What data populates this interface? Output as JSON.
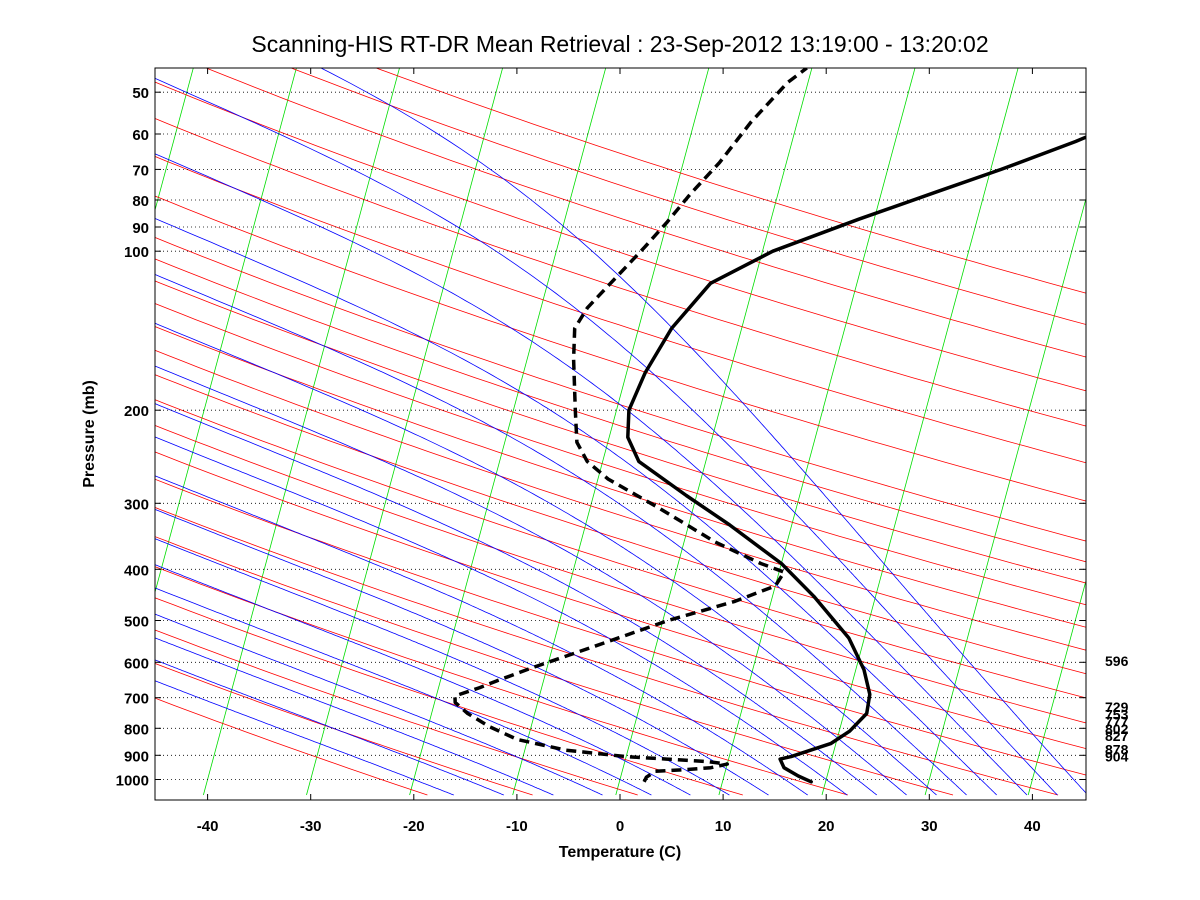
{
  "chart_data": {
    "type": "line",
    "title": "Scanning-HIS RT-DR Mean Retrieval : 23-Sep-2012 13:19:00 - 13:20:02",
    "xlabel": "Temperature (C)",
    "ylabel": "Pressure (mb)",
    "xlim": [
      -45,
      45
    ],
    "ylim": [
      1070,
      44
    ],
    "y_scale": "log",
    "x_ticks": [
      -40,
      -30,
      -20,
      -10,
      0,
      10,
      20,
      30,
      40
    ],
    "x_tick_labels": [
      "-40",
      "-30",
      "-20",
      "-10",
      "0",
      "10",
      "20",
      "30",
      "40"
    ],
    "y_ticks": [
      50,
      60,
      70,
      80,
      90,
      100,
      200,
      300,
      400,
      500,
      600,
      700,
      800,
      900,
      1000
    ],
    "y_tick_labels": [
      "50",
      "60",
      "70",
      "80",
      "90",
      "100",
      "200",
      "300",
      "400",
      "500",
      "600",
      "700",
      "800",
      "900",
      "1000"
    ],
    "grid": "horizontal-dotted",
    "skew": "skew-T log-P",
    "background_lines": {
      "dry_adiabats_theta_K": [
        250,
        260,
        270,
        280,
        290,
        300,
        310,
        320,
        330,
        340,
        350,
        360,
        370,
        380,
        390,
        400,
        410,
        420,
        440,
        460,
        480,
        500,
        520,
        540,
        560
      ],
      "moist_adiabats_thetaw_C": [
        -20,
        -15,
        -10,
        -5,
        0,
        4,
        8,
        12,
        16,
        20,
        23,
        26,
        29,
        32,
        35,
        38,
        41,
        44
      ],
      "isotherms_C": [
        -140,
        -130,
        -120,
        -110,
        -100,
        -90,
        -80,
        -70,
        -60,
        -50,
        -40,
        -30,
        -20,
        -10,
        0,
        10,
        20,
        30,
        40
      ]
    },
    "series": [
      {
        "name": "Temperature",
        "style": "solid",
        "color": "#000000",
        "points": [
          {
            "t": 18.6,
            "p": 1010
          },
          {
            "t": 17.2,
            "p": 985
          },
          {
            "t": 15.6,
            "p": 950
          },
          {
            "t": 15.0,
            "p": 915
          },
          {
            "t": 16.0,
            "p": 905
          },
          {
            "t": 19.5,
            "p": 855
          },
          {
            "t": 21.0,
            "p": 810
          },
          {
            "t": 22.2,
            "p": 750
          },
          {
            "t": 22.0,
            "p": 690
          },
          {
            "t": 20.8,
            "p": 620
          },
          {
            "t": 18.5,
            "p": 540
          },
          {
            "t": 14.0,
            "p": 450
          },
          {
            "t": 10.0,
            "p": 390
          },
          {
            "t": 4.0,
            "p": 330
          },
          {
            "t": -1.0,
            "p": 290
          },
          {
            "t": -6.5,
            "p": 250
          },
          {
            "t": -8.2,
            "p": 225
          },
          {
            "t": -8.8,
            "p": 200
          },
          {
            "t": -8.2,
            "p": 170
          },
          {
            "t": -6.8,
            "p": 140
          },
          {
            "t": -4.2,
            "p": 115
          },
          {
            "t": 1.0,
            "p": 100
          },
          {
            "t": 8.5,
            "p": 87
          },
          {
            "t": 15.5,
            "p": 77
          },
          {
            "t": 21.0,
            "p": 70
          },
          {
            "t": 27.5,
            "p": 62
          },
          {
            "t": 34.0,
            "p": 54
          },
          {
            "t": 39.5,
            "p": 48
          },
          {
            "t": 44.0,
            "p": 44
          }
        ]
      },
      {
        "name": "Dewpoint",
        "style": "dashed",
        "color": "#000000",
        "points": [
          {
            "t": 2.4,
            "p": 1010
          },
          {
            "t": 2.5,
            "p": 990
          },
          {
            "t": 3.2,
            "p": 965
          },
          {
            "t": 6.0,
            "p": 958
          },
          {
            "t": 8.5,
            "p": 950
          },
          {
            "t": 10.0,
            "p": 935
          },
          {
            "t": 8.0,
            "p": 925
          },
          {
            "t": 4.0,
            "p": 915
          },
          {
            "t": 0.0,
            "p": 905
          },
          {
            "t": -6.0,
            "p": 880
          },
          {
            "t": -11.0,
            "p": 840
          },
          {
            "t": -14.0,
            "p": 795
          },
          {
            "t": -16.5,
            "p": 750
          },
          {
            "t": -18.0,
            "p": 715
          },
          {
            "t": -18.2,
            "p": 695
          },
          {
            "t": -16.0,
            "p": 670
          },
          {
            "t": -14.5,
            "p": 650
          },
          {
            "t": -11.5,
            "p": 615
          },
          {
            "t": -6.0,
            "p": 560
          },
          {
            "t": 0.5,
            "p": 500
          },
          {
            "t": 6.5,
            "p": 460
          },
          {
            "t": 10.0,
            "p": 430
          },
          {
            "t": 10.5,
            "p": 405
          },
          {
            "t": 8.0,
            "p": 390
          },
          {
            "t": 3.0,
            "p": 355
          },
          {
            "t": -3.5,
            "p": 305
          },
          {
            "t": -9.0,
            "p": 270
          },
          {
            "t": -11.5,
            "p": 250
          },
          {
            "t": -13.0,
            "p": 230
          },
          {
            "t": -14.0,
            "p": 200
          },
          {
            "t": -15.5,
            "p": 160
          },
          {
            "t": -16.2,
            "p": 140
          },
          {
            "t": -15.5,
            "p": 128
          },
          {
            "t": -13.5,
            "p": 112
          },
          {
            "t": -11.5,
            "p": 98
          },
          {
            "t": -10.0,
            "p": 88
          },
          {
            "t": -8.5,
            "p": 78
          },
          {
            "t": -6.5,
            "p": 68
          },
          {
            "t": -4.5,
            "p": 57
          },
          {
            "t": -2.0,
            "p": 48
          },
          {
            "t": -0.5,
            "p": 45
          }
        ]
      }
    ],
    "side_labels": [
      {
        "text": "596",
        "p": 596
      },
      {
        "text": "729",
        "p": 729
      },
      {
        "text": "753",
        "p": 753
      },
      {
        "text": "777",
        "p": 777
      },
      {
        "text": "802",
        "p": 802
      },
      {
        "text": "827",
        "p": 827
      },
      {
        "text": "878",
        "p": 878
      },
      {
        "text": "904",
        "p": 904
      }
    ],
    "colors": {
      "dry_adiabat": "#ff0000",
      "moist_adiabat": "#0000ff",
      "isotherm": "#00dd00",
      "grid": "#000000",
      "profile": "#000000"
    }
  }
}
